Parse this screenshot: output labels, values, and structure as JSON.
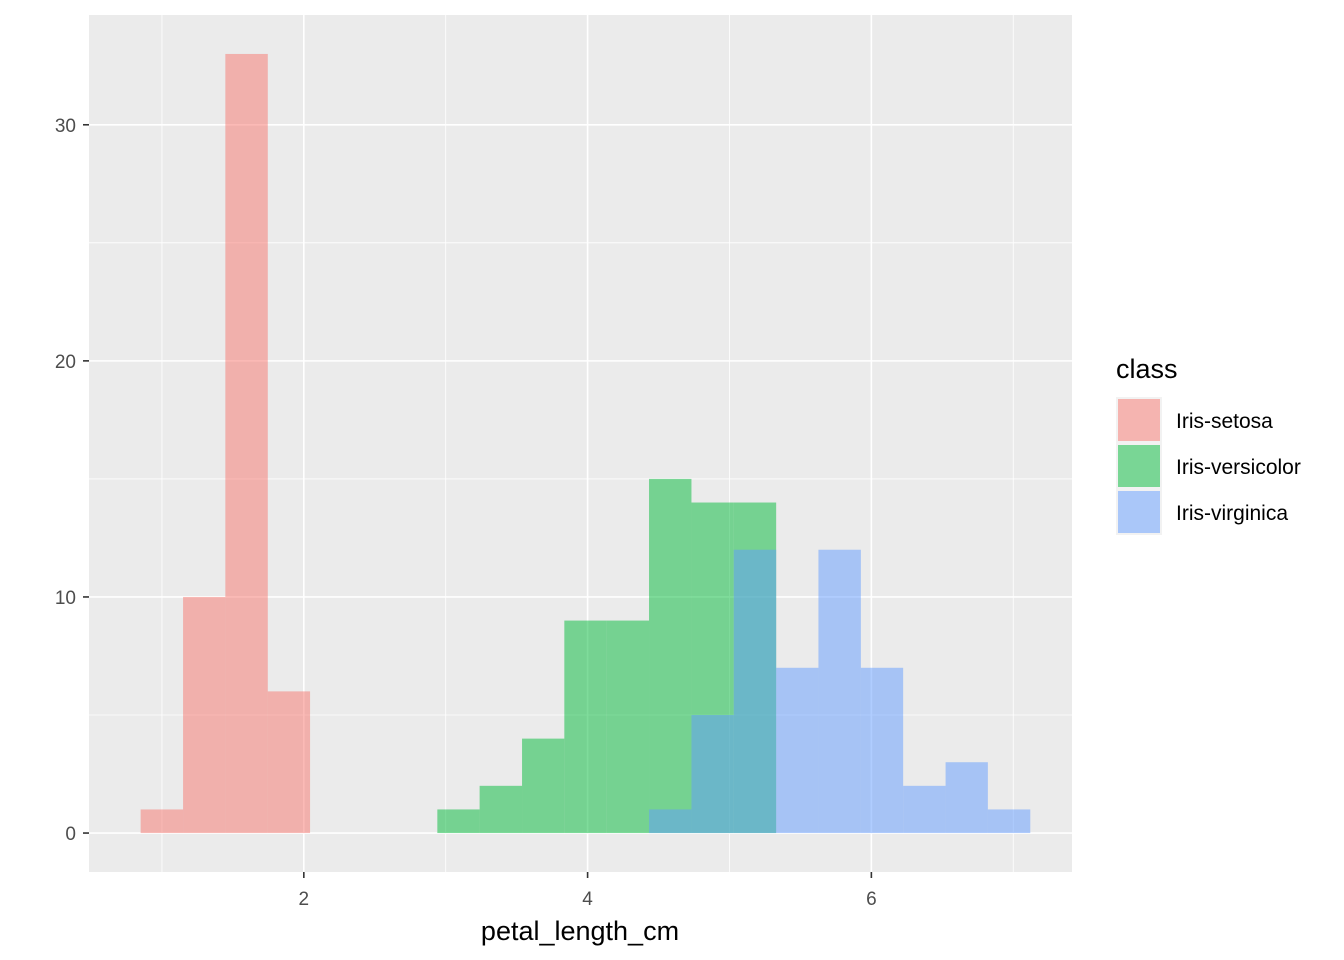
{
  "chart_data": {
    "type": "bar",
    "subtype": "overlapping histogram",
    "xlabel": "petal_length_cm",
    "ylabel": "",
    "xlim": [
      0.486,
      7.414
    ],
    "ylim": [
      -1.65,
      34.65
    ],
    "x_breaks": [
      2,
      4,
      6
    ],
    "y_breaks": [
      0,
      10,
      20,
      30
    ],
    "grid": true,
    "legend_position": "right",
    "legend_title": "class",
    "bin_width": 0.2985,
    "series": [
      {
        "name": "Iris-setosa",
        "color": "#F8766D",
        "bins": [
          {
            "x0": 0.85,
            "x1": 1.149,
            "count": 1
          },
          {
            "x0": 1.149,
            "x1": 1.447,
            "count": 10
          },
          {
            "x0": 1.447,
            "x1": 1.746,
            "count": 33
          },
          {
            "x0": 1.746,
            "x1": 2.044,
            "count": 6
          }
        ]
      },
      {
        "name": "Iris-versicolor",
        "color": "#00BA38",
        "bins": [
          {
            "x0": 2.941,
            "x1": 3.239,
            "count": 1
          },
          {
            "x0": 3.239,
            "x1": 3.538,
            "count": 2
          },
          {
            "x0": 3.538,
            "x1": 3.836,
            "count": 4
          },
          {
            "x0": 3.836,
            "x1": 4.135,
            "count": 9
          },
          {
            "x0": 4.135,
            "x1": 4.433,
            "count": 9
          },
          {
            "x0": 4.433,
            "x1": 4.732,
            "count": 15
          },
          {
            "x0": 4.732,
            "x1": 5.03,
            "count": 14
          },
          {
            "x0": 5.03,
            "x1": 5.329,
            "count": 14
          }
        ]
      },
      {
        "name": "Iris-virginica",
        "color": "#619CFF",
        "bins": [
          {
            "x0": 4.433,
            "x1": 4.732,
            "count": 1
          },
          {
            "x0": 4.732,
            "x1": 5.03,
            "count": 5
          },
          {
            "x0": 5.03,
            "x1": 5.329,
            "count": 12
          },
          {
            "x0": 5.329,
            "x1": 5.627,
            "count": 7
          },
          {
            "x0": 5.627,
            "x1": 5.926,
            "count": 12
          },
          {
            "x0": 5.926,
            "x1": 6.224,
            "count": 7
          },
          {
            "x0": 6.224,
            "x1": 6.523,
            "count": 2
          },
          {
            "x0": 6.523,
            "x1": 6.821,
            "count": 3
          },
          {
            "x0": 6.821,
            "x1": 7.12,
            "count": 1
          }
        ]
      }
    ]
  }
}
